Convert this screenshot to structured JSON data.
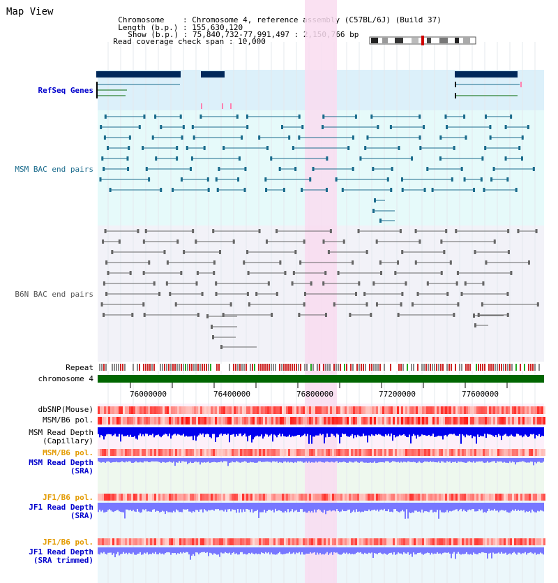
{
  "title": "Map View",
  "info": {
    "chromosome_label": "Chromosome",
    "chromosome_value": "Chromosome 4, reference assembly (C57BL/6J) (Build 37)",
    "length_label": "Length (b.p.)",
    "length_value": "155,630,120",
    "show_label": "Show (b.p.)",
    "show_value": "75,840,732-77,991,497 : 2,150,766 bp",
    "coverage_label": "Read coverage check span",
    "coverage_value": "10,000"
  },
  "tracks": {
    "refseq": "RefSeq Genes",
    "msm_bac": "MSM BAC end pairs",
    "b6n_bac": "B6N BAC end pairs",
    "repeat": "Repeat",
    "chromosome": "chromosome 4",
    "dbsnp": "dbSNP(Mouse)",
    "msm_b6_pol_1": "MSM/B6 pol.",
    "msm_depth_cap_1": "MSM Read Depth",
    "msm_depth_cap_2": "(Capillary)",
    "msm_b6_pol_2": "MSM/B6 pol.",
    "msm_depth_sra_1": "MSM Read Depth",
    "msm_depth_sra_2": "(SRA)",
    "jf1_b6_pol_1": "JF1/B6 pol.",
    "jf1_depth_sra_1": "JF1 Read Depth",
    "jf1_depth_sra_2": "(SRA)",
    "jf1_b6_pol_2": "JF1/B6 pol.",
    "jf1_depth_trim_1": "JF1 Read Depth",
    "jf1_depth_trim_2": "(SRA trimmed)"
  },
  "axis": {
    "ticks": [
      "76000000",
      "76400000",
      "76800000",
      "77200000",
      "77600000"
    ]
  },
  "colors": {
    "refseq_bg": "#dcf0fa",
    "msm_bg": "#e6fafa",
    "b6n_bg": "#f2f2f8",
    "highlight": "#f9dcf0",
    "gene_dark": "#00285a",
    "msm_line": "#1a6b8c",
    "b6n_line": "#666666",
    "chromosome_bar": "#006600",
    "depth_blue": "#0000ee",
    "depth_light": "#7777ff"
  }
}
